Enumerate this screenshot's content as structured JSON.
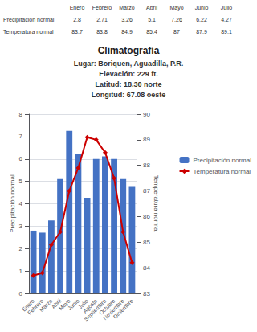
{
  "chart_data": {
    "type": "bar",
    "title": "Climatografía",
    "subtitle": [
      "Lugar: Boriquen, Aguadilla, P.R.",
      "Elevación: 229 ft.",
      "Latitud: 18.30 norte",
      "Longitud: 67.08 oeste"
    ],
    "categories": [
      "Enero",
      "Febrero",
      "Marzo",
      "Abril",
      "Mayo",
      "Junio",
      "Julio",
      "Agosto",
      "Septiembre",
      "Octubre",
      "Noviembre",
      "Diciembre"
    ],
    "series": [
      {
        "name": "Precipitación normal",
        "type": "bar",
        "color": "#4472C4",
        "values": [
          2.8,
          2.71,
          3.26,
          5.1,
          7.26,
          6.22,
          4.27,
          6.0,
          6.12,
          6.0,
          5.1,
          4.75
        ]
      },
      {
        "name": "Temperatura normal",
        "type": "line",
        "axis": "y2",
        "color": "#CC0000",
        "marker": "diamond",
        "values": [
          83.7,
          83.8,
          84.9,
          85.4,
          87.0,
          87.9,
          89.1,
          89.0,
          88.5,
          87.5,
          85.4,
          84.2
        ]
      }
    ],
    "ylabel": "Precipitación normal",
    "y2label": "Temperatura normal",
    "ylim": [
      0,
      8
    ],
    "yticks": [
      0,
      1,
      2,
      3,
      4,
      5,
      6,
      7,
      8
    ],
    "y2lim": [
      83,
      90
    ],
    "y2ticks": [
      83,
      84,
      85,
      86,
      87,
      88,
      89,
      90
    ],
    "grid": true,
    "legend": "right",
    "table": {
      "columns": [
        "Enero",
        "Febrero",
        "Marzo",
        "Abril",
        "Mayo",
        "Junio",
        "Julio"
      ],
      "rows": [
        {
          "label": "Precipitación normal",
          "values": [
            2.8,
            2.71,
            3.26,
            5.1,
            7.26,
            6.22,
            4.27
          ]
        },
        {
          "label": "Temperatura normal",
          "values": [
            83.7,
            83.8,
            84.9,
            85.4,
            87,
            87.9,
            89.1
          ]
        }
      ]
    }
  }
}
